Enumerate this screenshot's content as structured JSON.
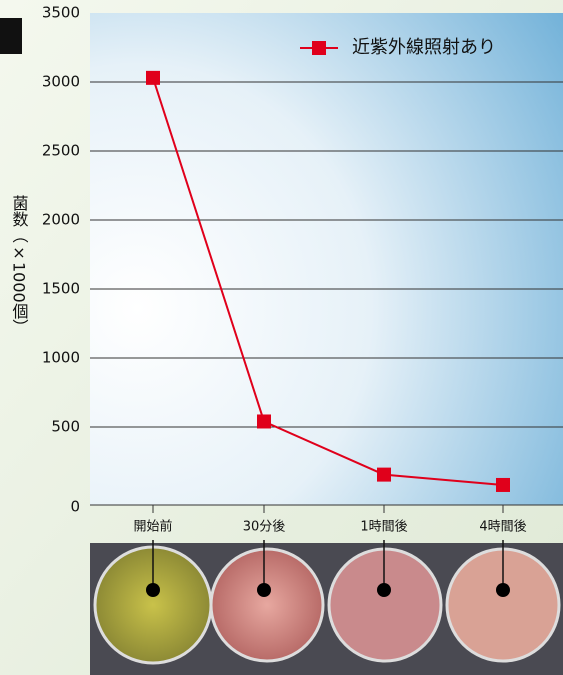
{
  "chart_data": {
    "type": "line",
    "y_label": "菌数（×1000個）",
    "categories": [
      "開始前",
      "30分後",
      "1時間後",
      "4時間後"
    ],
    "series": [
      {
        "name": "近紫外線照射あり",
        "color": "#e0001b",
        "values": [
          3030,
          540,
          155,
          80
        ]
      }
    ],
    "ylim": [
      0,
      3500
    ],
    "yticks": [
      0,
      500,
      1000,
      1500,
      2000,
      2500,
      3000,
      3500
    ],
    "grid": true
  }
}
